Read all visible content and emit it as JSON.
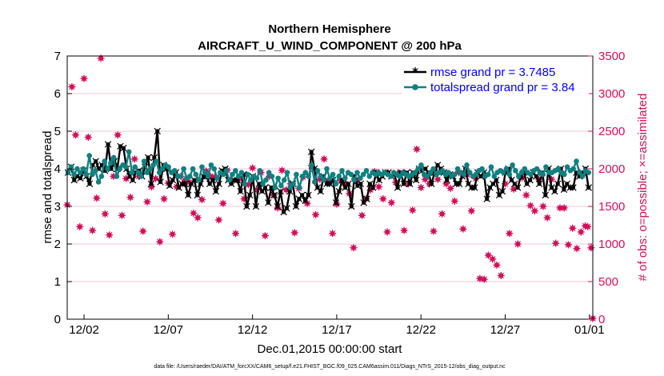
{
  "chart_data": {
    "type": "line",
    "title_line1": "Northern Hemisphere",
    "title_line2": "AIRCRAFT_U_WIND_COMPONENT @ 200 hPa",
    "xlabel": "Dec.01,2015 00:00:00 start",
    "ylabel_left": "rmse and totalspread",
    "ylabel_right": "# of obs: o=possible; ×=assimilated",
    "footer": "data file: /Users/raeder/DAI/ATM_forcXX/CAM6_setup/f.e21.FHIST_BGC.f09_025.CAM6assim.011/Diags_NTrS_2015-12/obs_diag_output.nc",
    "xlim": [
      0.5,
      31.7
    ],
    "ylim_left": [
      0,
      7
    ],
    "ylim_right": [
      0,
      3500
    ],
    "x_ticks": [
      {
        "v": 1.5,
        "label": "12/02"
      },
      {
        "v": 6.5,
        "label": "12/07"
      },
      {
        "v": 11.5,
        "label": "12/12"
      },
      {
        "v": 16.5,
        "label": "12/17"
      },
      {
        "v": 21.5,
        "label": "12/22"
      },
      {
        "v": 26.5,
        "label": "12/27"
      },
      {
        "v": 31.5,
        "label": "01/01"
      }
    ],
    "y_ticks_left": [
      "0",
      "1",
      "2",
      "3",
      "4",
      "5",
      "6",
      "7"
    ],
    "y_ticks_right": [
      "0",
      "500",
      "1000",
      "1500",
      "2000",
      "2500",
      "3000",
      "3500"
    ],
    "colors": {
      "rmse": "#000000",
      "spread": "#0f8080",
      "obs": "#d40f5a",
      "axis": "#000000",
      "legend_text": "#0000ff"
    },
    "series": [
      {
        "name": "rmse",
        "legend": "rmse grand pr = 3.7485",
        "values": [
          3.9,
          4.05,
          3.7,
          3.8,
          3.75,
          3.95,
          3.8,
          3.6,
          4.1,
          4.2,
          4.0,
          4.1,
          3.95,
          4.65,
          4.0,
          4.2,
          4.0,
          4.6,
          4.55,
          4.0,
          3.8,
          3.7,
          3.9,
          3.95,
          3.8,
          4.05,
          4.3,
          3.6,
          4.3,
          5.0,
          3.65,
          4.1,
          4.0,
          3.55,
          3.7,
          3.9,
          3.5,
          3.6,
          3.6,
          3.3,
          3.6,
          3.7,
          3.3,
          3.6,
          3.8,
          3.8,
          3.6,
          3.7,
          3.4,
          3.6,
          3.95,
          4.0,
          3.7,
          3.6,
          3.7,
          3.7,
          3.4,
          3.85,
          3.0,
          3.3,
          3.8,
          3.0,
          3.6,
          3.4,
          3.5,
          3.1,
          3.5,
          3.3,
          3.0,
          3.4,
          2.85,
          2.95,
          3.4,
          3.6,
          3.0,
          3.2,
          3.3,
          3.15,
          3.3,
          4.45,
          4.0,
          3.5,
          3.4,
          3.8,
          3.6,
          3.6,
          3.7,
          3.1,
          3.4,
          3.7,
          3.5,
          3.6,
          3.0,
          3.8,
          3.55,
          3.6,
          3.1,
          3.2,
          3.6,
          3.5,
          3.9,
          3.7,
          3.8,
          3.9,
          3.9,
          3.8,
          3.85,
          3.5,
          3.9,
          3.6,
          3.9,
          3.6,
          3.9,
          3.7,
          4.0,
          3.95,
          4.0,
          3.9,
          3.6,
          3.9,
          4.1,
          4.0,
          3.9,
          3.7,
          3.85,
          3.8,
          3.6,
          3.6,
          3.8,
          4.0,
          3.6,
          3.5,
          3.5,
          3.9,
          3.8,
          3.9,
          3.2,
          3.5,
          3.6,
          3.7,
          3.3,
          3.4,
          3.9,
          4.0,
          3.7,
          3.6,
          3.5,
          3.8,
          3.9,
          3.6,
          3.7,
          3.9,
          3.8,
          3.6,
          3.9,
          3.3,
          4.0,
          3.5,
          3.4,
          3.6,
          4.0,
          3.45,
          3.6,
          3.5,
          3.5,
          3.9,
          3.8,
          3.9,
          4.0,
          3.5
        ]
      },
      {
        "name": "totalspread",
        "legend": "totalspread grand pr = 3.84",
        "values": [
          3.9,
          4.05,
          3.85,
          4.0,
          3.9,
          4.0,
          3.85,
          4.35,
          3.85,
          3.95,
          3.65,
          3.8,
          4.2,
          4.0,
          4.15,
          4.3,
          3.8,
          4.0,
          4.1,
          4.05,
          4.45,
          3.9,
          4.05,
          3.9,
          3.8,
          4.2,
          3.9,
          4.0,
          4.1,
          4.2,
          3.9,
          4.0,
          4.1,
          4.05,
          3.9,
          3.95,
          3.8,
          3.8,
          4.0,
          3.75,
          3.8,
          4.0,
          3.85,
          3.7,
          4.05,
          3.9,
          3.8,
          4.1,
          4.0,
          3.75,
          3.9,
          3.85,
          3.95,
          3.7,
          3.85,
          3.95,
          3.8,
          3.9,
          3.6,
          3.85,
          3.7,
          3.8,
          3.75,
          3.95,
          3.6,
          3.7,
          3.9,
          3.8,
          3.5,
          3.75,
          3.55,
          3.7,
          3.9,
          3.5,
          3.6,
          3.85,
          3.5,
          3.8,
          3.9,
          3.8,
          4.1,
          3.65,
          3.95,
          3.8,
          3.7,
          4.0,
          3.75,
          3.85,
          3.6,
          3.8,
          3.95,
          3.75,
          3.9,
          3.85,
          3.7,
          3.9,
          3.75,
          3.85,
          3.95,
          3.8,
          3.9,
          3.85,
          3.9,
          3.85,
          3.9,
          3.85,
          3.8,
          3.9,
          3.85,
          3.8,
          3.9,
          3.85,
          3.8,
          3.85,
          3.9,
          4.0,
          4.1,
          3.85,
          3.8,
          3.9,
          4.0,
          3.85,
          3.9,
          3.95,
          3.85,
          3.9,
          3.8,
          3.85,
          4.0,
          3.9,
          3.85,
          4.1,
          3.9,
          3.8,
          3.85,
          3.95,
          4.0,
          3.8,
          3.85,
          4.05,
          3.8,
          3.9,
          3.95,
          3.9,
          4.0,
          3.85,
          4.1,
          3.95,
          3.8,
          3.9,
          4.0,
          3.9,
          3.85,
          3.95,
          4.0,
          3.9,
          3.85,
          4.05,
          3.9,
          3.9,
          3.95,
          4.0,
          3.9,
          3.85,
          4.05,
          3.95,
          4.0,
          4.2,
          3.9,
          3.8,
          3.95,
          3.9
        ]
      }
    ],
    "obs_possible": [
      [
        0.5,
        1520
      ],
      [
        0.78,
        3090
      ],
      [
        1.0,
        2450
      ],
      [
        1.25,
        1230
      ],
      [
        1.5,
        3200
      ],
      [
        1.75,
        2420
      ],
      [
        2.0,
        1180
      ],
      [
        2.25,
        1610
      ],
      [
        2.5,
        3470
      ],
      [
        2.75,
        1400
      ],
      [
        3.0,
        1120
      ],
      [
        3.25,
        1900
      ],
      [
        3.5,
        2450
      ],
      [
        3.75,
        1380
      ],
      [
        4.0,
        1870
      ],
      [
        4.25,
        1620
      ],
      [
        4.5,
        2130
      ],
      [
        4.75,
        1900
      ],
      [
        5.0,
        1170
      ],
      [
        5.25,
        1560
      ],
      [
        5.5,
        1760
      ],
      [
        5.75,
        1870
      ],
      [
        6.0,
        1030
      ],
      [
        6.25,
        1600
      ],
      [
        6.5,
        1810
      ],
      [
        6.75,
        1130
      ],
      [
        7.0,
        1760
      ],
      [
        7.25,
        1900
      ],
      [
        7.5,
        1850
      ],
      [
        7.75,
        1820
      ],
      [
        8.0,
        1410
      ],
      [
        8.25,
        1350
      ],
      [
        8.5,
        1590
      ],
      [
        8.75,
        1970
      ],
      [
        9.0,
        1900
      ],
      [
        9.25,
        1890
      ],
      [
        9.5,
        1320
      ],
      [
        9.75,
        1540
      ],
      [
        10.0,
        1980
      ],
      [
        10.25,
        1830
      ],
      [
        10.5,
        1140
      ],
      [
        10.75,
        1870
      ],
      [
        11.0,
        1600
      ],
      [
        11.25,
        1790
      ],
      [
        11.5,
        2010
      ],
      [
        11.75,
        1720
      ],
      [
        12.0,
        1950
      ],
      [
        12.25,
        1110
      ],
      [
        12.5,
        1900
      ],
      [
        12.75,
        1650
      ],
      [
        13.0,
        1480
      ],
      [
        13.25,
        1980
      ],
      [
        13.5,
        1720
      ],
      [
        13.75,
        1800
      ],
      [
        14.0,
        1150
      ],
      [
        14.25,
        1740
      ],
      [
        14.5,
        1890
      ],
      [
        14.75,
        1540
      ],
      [
        15.0,
        2040
      ],
      [
        15.25,
        1390
      ],
      [
        15.5,
        1860
      ],
      [
        15.75,
        2130
      ],
      [
        16.0,
        1840
      ],
      [
        16.25,
        1140
      ],
      [
        16.5,
        1530
      ],
      [
        16.75,
        1840
      ],
      [
        17.0,
        1800
      ],
      [
        17.25,
        1670
      ],
      [
        17.5,
        950
      ],
      [
        17.75,
        1850
      ],
      [
        18.0,
        1380
      ],
      [
        18.25,
        1600
      ],
      [
        18.5,
        1720
      ],
      [
        18.75,
        1960
      ],
      [
        19.0,
        1760
      ],
      [
        19.25,
        1600
      ],
      [
        19.5,
        1160
      ],
      [
        19.75,
        1550
      ],
      [
        20.0,
        1820
      ],
      [
        20.25,
        1940
      ],
      [
        20.5,
        1180
      ],
      [
        20.75,
        1800
      ],
      [
        21.0,
        1450
      ],
      [
        21.25,
        2260
      ],
      [
        21.5,
        1750
      ],
      [
        21.75,
        1860
      ],
      [
        22.0,
        1800
      ],
      [
        22.25,
        1170
      ],
      [
        22.5,
        1860
      ],
      [
        22.75,
        1400
      ],
      [
        23.0,
        1800
      ],
      [
        23.25,
        1740
      ],
      [
        23.5,
        1570
      ],
      [
        23.75,
        1950
      ],
      [
        24.0,
        1200
      ],
      [
        24.25,
        1920
      ],
      [
        24.5,
        1440
      ],
      [
        24.75,
        1870
      ],
      [
        25.0,
        540
      ],
      [
        25.25,
        530
      ],
      [
        25.5,
        850
      ],
      [
        25.75,
        800
      ],
      [
        26.0,
        720
      ],
      [
        26.25,
        580
      ],
      [
        26.5,
        1800
      ],
      [
        26.75,
        1140
      ],
      [
        27.0,
        1730
      ],
      [
        27.25,
        1000
      ],
      [
        27.5,
        1880
      ],
      [
        27.75,
        1650
      ],
      [
        28.0,
        1510
      ],
      [
        28.25,
        1440
      ],
      [
        28.5,
        1860
      ],
      [
        28.75,
        1500
      ],
      [
        29.0,
        1350
      ],
      [
        29.25,
        1860
      ],
      [
        29.5,
        1010
      ],
      [
        29.75,
        1480
      ],
      [
        30.0,
        1480
      ],
      [
        30.25,
        990
      ],
      [
        30.5,
        1210
      ],
      [
        30.75,
        940
      ],
      [
        31.0,
        1160
      ],
      [
        31.25,
        1240
      ],
      [
        31.4,
        1230
      ],
      [
        31.6,
        950
      ],
      [
        31.7,
        10
      ]
    ]
  }
}
